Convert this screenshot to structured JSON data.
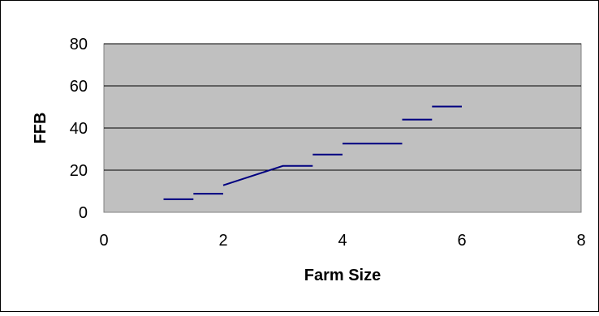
{
  "chart_data": {
    "type": "line",
    "title": "",
    "xlabel": "Farm Size",
    "ylabel": "FFB",
    "xlim": [
      0,
      8
    ],
    "ylim": [
      0,
      80
    ],
    "x_ticks": [
      "0",
      "2",
      "4",
      "6",
      "8"
    ],
    "y_ticks": [
      "0",
      "20",
      "40",
      "60",
      "80"
    ],
    "grid": "horizontal",
    "legend": "none",
    "colors": {
      "plot_background": "#c0c0c0",
      "line": "#000080",
      "gridline": "#000000",
      "frame": "#000000"
    },
    "series": [
      {
        "x": [
          1.0,
          1.5,
          1.5,
          2.0,
          2.0,
          3.0,
          3.5,
          3.5,
          4.0,
          4.0,
          5.0,
          5.0,
          5.5,
          5.5,
          6.0
        ],
        "y": [
          6.2,
          6.2,
          8.8,
          8.8,
          12.8,
          22.0,
          22.0,
          27.4,
          27.4,
          32.6,
          32.6,
          44.0,
          44.0,
          50.2,
          50.2
        ],
        "breaks_after": [
          1,
          3,
          6,
          8,
          10,
          12
        ]
      }
    ]
  }
}
